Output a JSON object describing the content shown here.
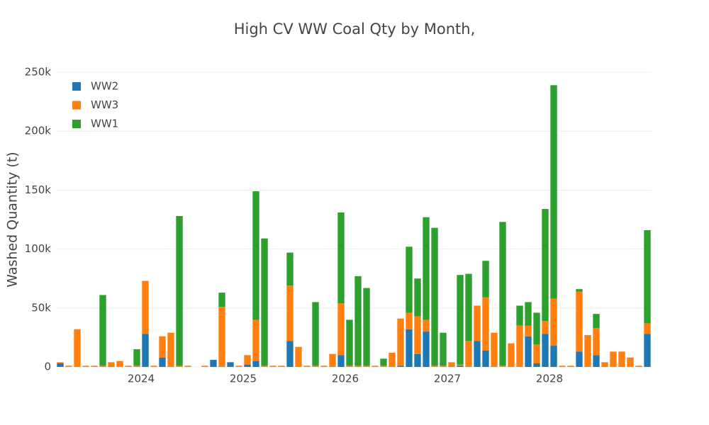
{
  "chart_data": {
    "type": "bar",
    "stacked": true,
    "title": "High CV WW Coal Qty by Month,",
    "y_label": "Washed Quantity (t)",
    "x": [
      "2023-03",
      "2023-04",
      "2023-05",
      "2023-06",
      "2023-07",
      "2023-08",
      "2023-09",
      "2023-10",
      "2023-11",
      "2023-12",
      "2024-01",
      "2024-02",
      "2024-03",
      "2024-04",
      "2024-05",
      "2024-06",
      "2024-07",
      "2024-08",
      "2024-09",
      "2024-10",
      "2024-11",
      "2024-12",
      "2025-01",
      "2025-02",
      "2025-03",
      "2025-04",
      "2025-05",
      "2025-06",
      "2025-07",
      "2025-08",
      "2025-09",
      "2025-10",
      "2025-11",
      "2025-12",
      "2026-01",
      "2026-02",
      "2026-03",
      "2026-04",
      "2026-05",
      "2026-06",
      "2026-07",
      "2026-08",
      "2026-09",
      "2026-10",
      "2026-11",
      "2026-12",
      "2027-01",
      "2027-02",
      "2027-03",
      "2027-04",
      "2027-05",
      "2027-06",
      "2027-07",
      "2027-08",
      "2027-09",
      "2027-10",
      "2027-11",
      "2027-12",
      "2028-01",
      "2028-02",
      "2028-03",
      "2028-04",
      "2028-05",
      "2028-06",
      "2028-07",
      "2028-08",
      "2028-09",
      "2028-10",
      "2028-11",
      "2028-12"
    ],
    "series": [
      {
        "name": "WW2",
        "color": "#1f77b4",
        "values": [
          3000,
          0,
          0,
          0,
          0,
          0,
          0,
          0,
          0,
          0,
          28000,
          0,
          8000,
          0,
          0,
          0,
          0,
          0,
          6000,
          0,
          4000,
          0,
          2000,
          5000,
          0,
          0,
          0,
          22000,
          0,
          0,
          0,
          0,
          0,
          10000,
          0,
          0,
          0,
          0,
          0,
          0,
          1000,
          32000,
          11000,
          30000,
          0,
          0,
          0,
          1000,
          0,
          22000,
          14000,
          0,
          0,
          0,
          0,
          26000,
          3000,
          28000,
          18000,
          0,
          0,
          13000,
          0,
          10000,
          0,
          0,
          0,
          0,
          0,
          28000
        ]
      },
      {
        "name": "WW3",
        "color": "#ff7f0e",
        "values": [
          1000,
          1000,
          32000,
          1000,
          1000,
          1000,
          4000,
          5000,
          1000,
          1000,
          45000,
          1000,
          18000,
          29000,
          1000,
          1000,
          0,
          1000,
          0,
          51000,
          0,
          1000,
          8000,
          35000,
          1000,
          1000,
          1000,
          47000,
          17000,
          1000,
          1000,
          1000,
          11000,
          44000,
          1000,
          1000,
          1000,
          1000,
          1000,
          12000,
          40000,
          14000,
          32000,
          10000,
          1000,
          1000,
          4000,
          1000,
          22000,
          30000,
          45000,
          29000,
          1000,
          20000,
          35000,
          9000,
          16000,
          11000,
          40000,
          1000,
          1000,
          51000,
          27000,
          23000,
          4000,
          13000,
          13000,
          8000,
          1000,
          9000
        ]
      },
      {
        "name": "WW1",
        "color": "#2ca02c",
        "values": [
          0,
          0,
          0,
          0,
          0,
          60000,
          0,
          0,
          0,
          14000,
          0,
          0,
          0,
          0,
          127000,
          0,
          0,
          0,
          0,
          12000,
          0,
          0,
          0,
          109000,
          108000,
          0,
          0,
          28000,
          0,
          0,
          54000,
          0,
          0,
          77000,
          39000,
          76000,
          66000,
          0,
          6000,
          0,
          0,
          56000,
          32000,
          87000,
          117000,
          28000,
          0,
          76000,
          57000,
          0,
          31000,
          0,
          122000,
          0,
          17000,
          20000,
          27000,
          95000,
          181000,
          0,
          0,
          2000,
          0,
          12000,
          0,
          0,
          0,
          0,
          0,
          79000
        ]
      }
    ],
    "xticks": [
      {
        "value": "2024-01",
        "label": "2024"
      },
      {
        "value": "2025-01",
        "label": "2025"
      },
      {
        "value": "2026-01",
        "label": "2026"
      },
      {
        "value": "2027-01",
        "label": "2027"
      },
      {
        "value": "2028-01",
        "label": "2028"
      }
    ],
    "ylim": [
      0,
      250000
    ],
    "yticks": [
      0,
      {
        "value": 50000,
        "label": "50k"
      },
      {
        "value": 100000,
        "label": "100k"
      },
      {
        "value": 150000,
        "label": "150k"
      },
      {
        "value": 200000,
        "label": "200k"
      },
      {
        "value": 250000,
        "label": "250k"
      }
    ],
    "grid": true,
    "legend": "top-left"
  }
}
